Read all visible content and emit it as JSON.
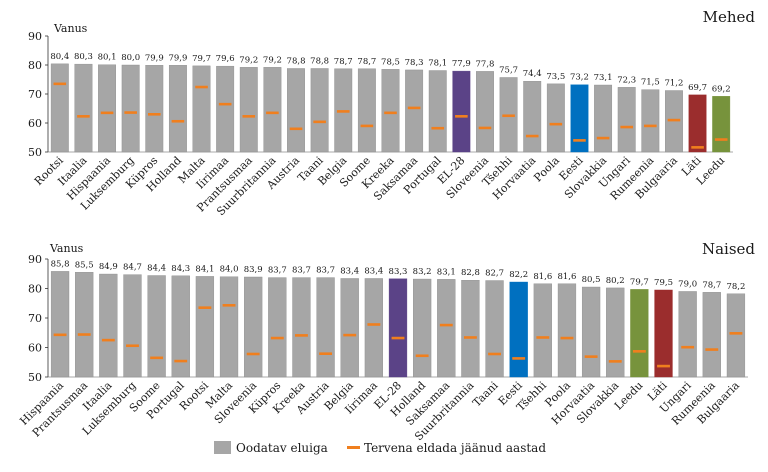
{
  "chart_data": [
    {
      "type": "bar",
      "title": "Mehed",
      "ylabel": "Vanus",
      "ylim": [
        50,
        90
      ],
      "yticks": [
        50,
        60,
        70,
        80,
        90
      ],
      "categories": [
        "Rootsi",
        "Itaalia",
        "Hispaania",
        "Luksemburg",
        "Küpros",
        "Holland",
        "Malta",
        "Iirimaa",
        "Prantsusmaa",
        "Suurbritannia",
        "Austria",
        "Taani",
        "Belgia",
        "Soome",
        "Kreeka",
        "Saksamaa",
        "Portugal",
        "EL-28",
        "Sloveenia",
        "Tšehhi",
        "Horvaatia",
        "Poola",
        "Eesti",
        "Slovakkia",
        "Ungari",
        "Rumeenia",
        "Bulgaaria",
        "Läti",
        "Leedu"
      ],
      "value_labels": [
        "80,4",
        "80,3",
        "80,1",
        "80,0",
        "79,9",
        "79,9",
        "79,7",
        "79,6",
        "79,2",
        "79,2",
        "78,8",
        "78,8",
        "78,7",
        "78,7",
        "78,5",
        "78,3",
        "78,1",
        "77,9",
        "77,8",
        "75,7",
        "74,4",
        "73,5",
        "73,2",
        "73,1",
        "72,3",
        "71,5",
        "71,2",
        "69,7",
        "69,2"
      ],
      "series": [
        {
          "name": "Oodatav eluiga",
          "values": [
            80.4,
            80.3,
            80.1,
            80.0,
            79.9,
            79.9,
            79.7,
            79.6,
            79.2,
            79.2,
            78.8,
            78.8,
            78.7,
            78.7,
            78.5,
            78.3,
            78.1,
            77.9,
            77.8,
            75.7,
            74.4,
            73.5,
            73.2,
            73.1,
            72.3,
            71.5,
            71.2,
            69.7,
            69.2
          ]
        },
        {
          "name": "Tervena eldada jäänud aastad",
          "values": [
            73.5,
            62.3,
            63.5,
            63.6,
            63.0,
            60.6,
            72.4,
            66.5,
            62.3,
            63.5,
            58.0,
            60.4,
            64.0,
            59.0,
            63.5,
            65.2,
            58.2,
            62.3,
            58.3,
            62.5,
            55.5,
            59.6,
            54.0,
            54.8,
            58.6,
            59.0,
            61.0,
            51.6,
            54.3
          ]
        }
      ],
      "highlight_colors": {
        "EL-28": "#5b4387",
        "Eesti": "#0070c0",
        "Läti": "#9b2d2d",
        "Leedu": "#77933c"
      }
    },
    {
      "type": "bar",
      "title": "Naised",
      "ylabel": "Vanus",
      "ylim": [
        50,
        90
      ],
      "yticks": [
        50,
        60,
        70,
        80,
        90
      ],
      "categories": [
        "Hispaania",
        "Prantsusmaa",
        "Itaalia",
        "Luksemburg",
        "Soome",
        "Portugal",
        "Rootsi",
        "Malta",
        "Sloveenia",
        "Küpros",
        "Kreeka",
        "Austria",
        "Belgia",
        "Iirimaa",
        "EL-28",
        "Holland",
        "Saksamaa",
        "Suurbritannia",
        "Taani",
        "Eesti",
        "Tšehhi",
        "Poola",
        "Horvaatia",
        "Slovakkia",
        "Leedu",
        "Läti",
        "Ungari",
        "Rumeenia",
        "Bulgaaria"
      ],
      "value_labels": [
        "85,8",
        "85,5",
        "84,9",
        "84,7",
        "84,4",
        "84,3",
        "84,1",
        "84,0",
        "83,9",
        "83,7",
        "83,7",
        "83,7",
        "83,4",
        "83,4",
        "83,3",
        "83,2",
        "83,1",
        "82,8",
        "82,7",
        "82,2",
        "81,6",
        "81,6",
        "80,5",
        "80,2",
        "79,7",
        "79,5",
        "79,0",
        "78,7",
        "78,2"
      ],
      "series": [
        {
          "name": "Oodatav eluiga",
          "values": [
            85.8,
            85.5,
            84.9,
            84.7,
            84.4,
            84.3,
            84.1,
            84.0,
            83.9,
            83.7,
            83.7,
            83.7,
            83.4,
            83.4,
            83.3,
            83.2,
            83.1,
            82.8,
            82.7,
            82.2,
            81.6,
            81.6,
            80.5,
            80.2,
            79.7,
            79.5,
            79.0,
            78.7,
            78.2
          ]
        },
        {
          "name": "Tervena eldada jäänud aastad",
          "values": [
            64.3,
            64.4,
            62.5,
            60.6,
            56.5,
            55.4,
            73.5,
            74.3,
            57.8,
            63.2,
            64.1,
            57.9,
            64.2,
            67.8,
            63.2,
            57.2,
            67.6,
            63.4,
            57.8,
            56.3,
            63.4,
            63.2,
            56.9,
            55.3,
            58.7,
            53.7,
            60.1,
            59.3,
            64.8
          ]
        }
      ],
      "highlight_colors": {
        "EL-28": "#5b4387",
        "Eesti": "#0070c0",
        "Leedu": "#77933c",
        "Läti": "#9b2d2d"
      }
    }
  ],
  "legend": {
    "items": [
      {
        "label": "Oodatav eluiga",
        "color": "#a6a6a6"
      },
      {
        "label": "Tervena eldada jäänud aastad",
        "color": "#f07f1e"
      }
    ]
  },
  "colors": {
    "bar": "#a6a6a6",
    "bar_edge": "#8c8c8c",
    "marker": "#f07f1e"
  }
}
